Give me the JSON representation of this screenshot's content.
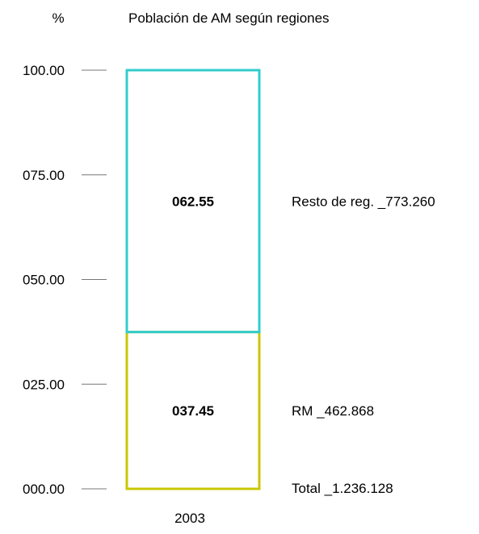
{
  "chart_data": {
    "type": "bar",
    "stacked": true,
    "title": "Población de AM según regiones",
    "ylabel": "%",
    "xlabel": "",
    "ylim": [
      0,
      100
    ],
    "yticks": [
      "000.00",
      "025.00",
      "050.00",
      "075.00",
      "100.00"
    ],
    "ytick_values": [
      0,
      25,
      50,
      75,
      100
    ],
    "grid": false,
    "categories": [
      "2003"
    ],
    "series": [
      {
        "name": "RM",
        "values": [
          37.45
        ],
        "value_label": "037.45",
        "legend_label": "RM  _462.868",
        "color": "#c8c800"
      },
      {
        "name": "Resto de reg.",
        "values": [
          62.55
        ],
        "value_label": "062.55",
        "legend_label": "Resto de reg.  _773.260",
        "color": "#33cccc"
      }
    ],
    "total_label": "Total  _1.236.128",
    "legend_placement": "right"
  }
}
